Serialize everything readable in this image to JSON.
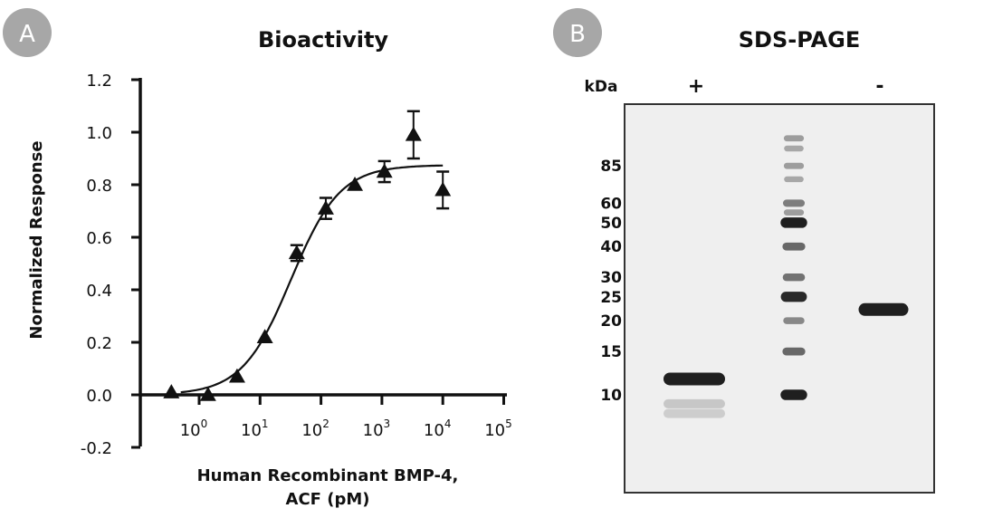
{
  "panels": {
    "a": {
      "badge": "A",
      "title": "Bioactivity",
      "badge_color": "#a7a7a7"
    },
    "b": {
      "badge": "B",
      "title": "SDS-PAGE",
      "badge_color": "#a7a7a7"
    }
  },
  "chart_data": [
    {
      "type": "scatter",
      "title": "Bioactivity",
      "xlabel": [
        "Human Recombinant BMP-4,",
        "ACF (pM)"
      ],
      "ylabel": "Normalized Response",
      "x_scale": "log",
      "xlim": [
        0.03,
        100000
      ],
      "ylim": [
        -0.2,
        1.2
      ],
      "x_ticks": [
        {
          "exp": "0",
          "value": 1
        },
        {
          "exp": "1",
          "value": 10
        },
        {
          "exp": "2",
          "value": 100
        },
        {
          "exp": "3",
          "value": 1000
        },
        {
          "exp": "4",
          "value": 10000
        },
        {
          "exp": "5",
          "value": 100000
        }
      ],
      "x_tick_base": "10",
      "y_ticks": [
        "-0.2",
        "0.0",
        "0.2",
        "0.4",
        "0.6",
        "0.8",
        "1.0",
        "1.2"
      ],
      "grid": false,
      "marker": "triangle",
      "series": [
        {
          "points": [
            {
              "x": 0.35,
              "y": 0.01,
              "err": 0
            },
            {
              "x": 1.4,
              "y": 0.0,
              "err": 0
            },
            {
              "x": 4.2,
              "y": 0.07,
              "err": 0
            },
            {
              "x": 12,
              "y": 0.22,
              "err": 0
            },
            {
              "x": 40,
              "y": 0.54,
              "err": 0.03
            },
            {
              "x": 120,
              "y": 0.71,
              "err": 0.04
            },
            {
              "x": 360,
              "y": 0.8,
              "err": 0
            },
            {
              "x": 1100,
              "y": 0.85,
              "err": 0.04
            },
            {
              "x": 3300,
              "y": 0.99,
              "err": 0.09
            },
            {
              "x": 10000,
              "y": 0.78,
              "err": 0.07
            }
          ]
        }
      ],
      "fit_curve": {
        "model": "4PL",
        "bottom": 0.0,
        "top": 0.875,
        "ec50": 32,
        "hill": 1.08,
        "x_range": [
          0.5,
          10000
        ]
      }
    },
    {
      "type": "gel",
      "title": "SDS-PAGE",
      "ylabel": "kDa",
      "lanes": [
        {
          "label": "+",
          "bands": [
            {
              "mw": 11.6,
              "intensity": 0.95
            },
            {
              "mw": 9.2,
              "intensity": 0.15
            },
            {
              "mw": 8.4,
              "intensity": 0.12
            }
          ]
        },
        {
          "label": "",
          "marker": true,
          "bands": [
            {
              "mw": 110,
              "intensity": 0.35
            },
            {
              "mw": 100,
              "intensity": 0.3
            },
            {
              "mw": 85,
              "intensity": 0.35
            },
            {
              "mw": 75,
              "intensity": 0.3
            },
            {
              "mw": 60,
              "intensity": 0.5
            },
            {
              "mw": 55,
              "intensity": 0.35
            },
            {
              "mw": 50,
              "intensity": 0.95
            },
            {
              "mw": 40,
              "intensity": 0.6
            },
            {
              "mw": 30,
              "intensity": 0.55
            },
            {
              "mw": 25,
              "intensity": 0.9
            },
            {
              "mw": 20,
              "intensity": 0.45
            },
            {
              "mw": 15,
              "intensity": 0.6
            },
            {
              "mw": 10,
              "intensity": 0.95
            }
          ]
        },
        {
          "label": "-",
          "bands": [
            {
              "mw": 22.2,
              "intensity": 0.95
            }
          ]
        }
      ],
      "mw_ticks": [
        "85",
        "60",
        "50",
        "40",
        "30",
        "25",
        "20",
        "15",
        "10"
      ],
      "mw_tick_values": [
        85,
        60,
        50,
        40,
        30,
        25,
        20,
        15,
        10
      ]
    }
  ]
}
